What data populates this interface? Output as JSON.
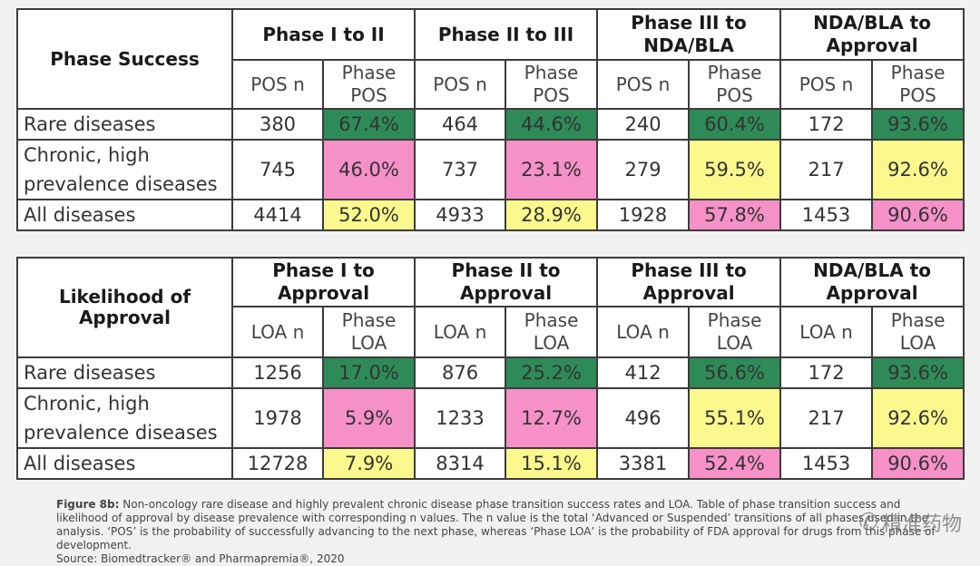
{
  "table1": {
    "title": "Phase Success",
    "groups": [
      "Phase I to II",
      "Phase II to III",
      "Phase III to NDA/BLA",
      "NDA/BLA to Approval"
    ],
    "sub_n": "POS n",
    "sub_rate": "Phase POS",
    "rows": [
      {
        "label": "Rare diseases",
        "cells": [
          "380",
          "67.4%",
          "464",
          "44.6%",
          "240",
          "60.4%",
          "172",
          "93.6%"
        ]
      },
      {
        "label": "Chronic, high prevalence diseases",
        "cells": [
          "745",
          "46.0%",
          "737",
          "23.1%",
          "279",
          "59.5%",
          "217",
          "92.6%"
        ]
      },
      {
        "label": "All diseases",
        "cells": [
          "4414",
          "52.0%",
          "4933",
          "28.9%",
          "1928",
          "57.8%",
          "1453",
          "90.6%"
        ]
      }
    ]
  },
  "table2": {
    "title": "Likelihood of Approval",
    "groups": [
      "Phase I to Approval",
      "Phase II to Approval",
      "Phase III to Approval",
      "NDA/BLA to Approval"
    ],
    "sub_n": "LOA n",
    "sub_rate": "Phase LOA",
    "rows": [
      {
        "label": "Rare diseases",
        "cells": [
          "1256",
          "17.0%",
          "876",
          "25.2%",
          "412",
          "56.6%",
          "172",
          "93.6%"
        ]
      },
      {
        "label": "Chronic, high prevalence diseases",
        "cells": [
          "1978",
          "5.9%",
          "1233",
          "12.7%",
          "496",
          "55.1%",
          "217",
          "92.6%"
        ]
      },
      {
        "label": "All diseases",
        "cells": [
          "12728",
          "7.9%",
          "8314",
          "15.1%",
          "3381",
          "52.4%",
          "1453",
          "90.6%"
        ]
      }
    ]
  },
  "colors": {
    "green": "#2e8b57",
    "pink": "#f691c8",
    "yellow": "#fbf98d"
  },
  "caption": {
    "label": "Figure 8b:",
    "text": "Non-oncology rare disease and highly prevalent chronic disease phase transition success rates and LOA. Table of phase transition success and likelihood of approval by disease prevalence with corresponding n values. The n value is the total ‘Advanced or Suspended’ transitions of all phases used in the analysis. ‘POS’ is the probability of successfully advancing to the next phase, whereas ‘Phase LOA’ is the probability of FDA approval for drugs from this phase of development.",
    "source": "Source: Biomedtracker® and Pharmapremia®, 2020"
  },
  "watermark": {
    "icon": "wechat-icon",
    "text": "精准药物"
  }
}
